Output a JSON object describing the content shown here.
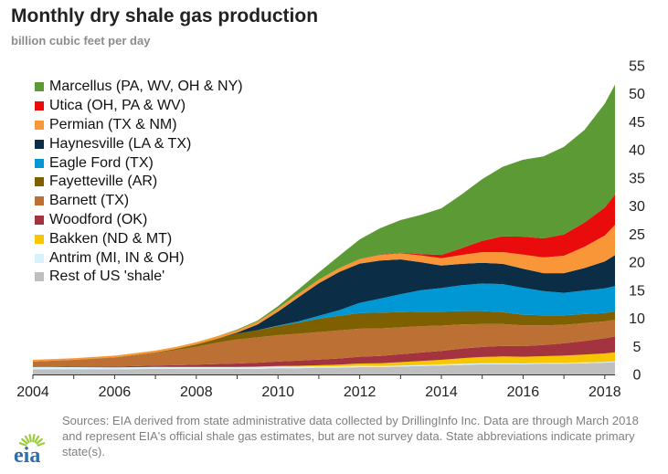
{
  "header": {
    "title": "Monthly dry shale gas production",
    "subtitle": "billion cubic feet per day"
  },
  "sources": {
    "text": "Sources: EIA derived from state administrative data collected by DrillingInfo Inc. Data are through March 2018 and represent EIA's official shale gas estimates, but are not survey data. State abbreviations indicate primary state(s)."
  },
  "logo": {
    "text": "eia",
    "color": "#2f6fae",
    "accent": "#9ccc3c"
  },
  "chart_data": {
    "type": "area",
    "stacked": true,
    "title": "Monthly dry shale gas production",
    "subtitle": "billion cubic feet per day",
    "xlabel": "",
    "ylabel": "",
    "xlim": [
      2004,
      2018.25
    ],
    "ylim": [
      0,
      55
    ],
    "x_ticks": [
      2004,
      2006,
      2008,
      2010,
      2012,
      2014,
      2016,
      2018
    ],
    "y_ticks": [
      0,
      5,
      10,
      15,
      20,
      25,
      30,
      35,
      40,
      45,
      50,
      55
    ],
    "y_axis_side": "right",
    "grid": false,
    "legend_position": "top-left",
    "x": [
      2004.0,
      2005.0,
      2006.0,
      2007.0,
      2007.5,
      2008.0,
      2008.5,
      2009.0,
      2009.5,
      2010.0,
      2010.5,
      2011.0,
      2011.5,
      2012.0,
      2012.5,
      2013.0,
      2013.5,
      2014.0,
      2014.5,
      2015.0,
      2015.5,
      2016.0,
      2016.5,
      2017.0,
      2017.5,
      2018.0,
      2018.25
    ],
    "series": [
      {
        "name": "Rest of US 'shale'",
        "color": "#bfbfbf",
        "values": [
          0.9,
          0.9,
          0.9,
          1.0,
          1.0,
          1.0,
          1.0,
          1.0,
          1.0,
          1.1,
          1.1,
          1.2,
          1.2,
          1.3,
          1.3,
          1.4,
          1.5,
          1.6,
          1.7,
          1.8,
          1.8,
          1.8,
          1.9,
          1.9,
          2.0,
          2.1,
          2.2
        ]
      },
      {
        "name": "Antrim (MI, IN & OH)",
        "color": "#d6f3fb",
        "values": [
          0.4,
          0.4,
          0.35,
          0.35,
          0.3,
          0.3,
          0.3,
          0.3,
          0.3,
          0.3,
          0.3,
          0.25,
          0.25,
          0.25,
          0.2,
          0.2,
          0.2,
          0.2,
          0.2,
          0.2,
          0.2,
          0.15,
          0.15,
          0.15,
          0.15,
          0.15,
          0.15
        ]
      },
      {
        "name": "Bakken (ND & MT)",
        "color": "#f7c600",
        "values": [
          0.0,
          0.0,
          0.0,
          0.0,
          0.05,
          0.05,
          0.05,
          0.05,
          0.1,
          0.1,
          0.15,
          0.2,
          0.3,
          0.4,
          0.5,
          0.6,
          0.7,
          0.8,
          1.0,
          1.1,
          1.2,
          1.2,
          1.2,
          1.3,
          1.4,
          1.5,
          1.6
        ]
      },
      {
        "name": "Woodford (OK)",
        "color": "#a3333f",
        "values": [
          0.0,
          0.1,
          0.15,
          0.25,
          0.3,
          0.4,
          0.5,
          0.6,
          0.7,
          0.8,
          0.9,
          1.0,
          1.1,
          1.2,
          1.3,
          1.4,
          1.5,
          1.6,
          1.7,
          1.8,
          1.9,
          1.9,
          2.0,
          2.2,
          2.4,
          2.7,
          2.8
        ]
      },
      {
        "name": "Barnett (TX)",
        "color": "#bd7033",
        "values": [
          1.0,
          1.2,
          1.6,
          2.2,
          2.7,
          3.2,
          3.8,
          4.3,
          4.5,
          4.7,
          4.8,
          4.9,
          5.0,
          5.0,
          4.9,
          4.8,
          4.7,
          4.5,
          4.3,
          4.1,
          3.9,
          3.7,
          3.5,
          3.3,
          3.2,
          3.0,
          3.0
        ]
      },
      {
        "name": "Fayetteville (AR)",
        "color": "#7f6000",
        "values": [
          0.0,
          0.0,
          0.05,
          0.1,
          0.2,
          0.4,
          0.7,
          1.0,
          1.3,
          1.6,
          2.0,
          2.4,
          2.6,
          2.8,
          2.8,
          2.7,
          2.6,
          2.5,
          2.4,
          2.3,
          2.1,
          1.9,
          1.8,
          1.7,
          1.6,
          1.5,
          1.5
        ]
      },
      {
        "name": "Eagle Ford (TX)",
        "color": "#0098d4",
        "values": [
          0.0,
          0.0,
          0.0,
          0.0,
          0.0,
          0.0,
          0.0,
          0.0,
          0.0,
          0.1,
          0.2,
          0.5,
          1.0,
          1.8,
          2.5,
          3.2,
          3.8,
          4.2,
          4.6,
          4.9,
          5.0,
          4.8,
          4.3,
          4.0,
          4.2,
          4.4,
          4.5
        ]
      },
      {
        "name": "Haynesville (LA & TX)",
        "color": "#0b2d46",
        "values": [
          0.0,
          0.0,
          0.0,
          0.0,
          0.0,
          0.0,
          0.0,
          0.2,
          1.0,
          2.5,
          4.3,
          5.8,
          6.8,
          7.0,
          6.8,
          6.2,
          5.0,
          4.0,
          3.8,
          3.7,
          3.6,
          3.4,
          3.2,
          3.5,
          4.0,
          4.8,
          5.5
        ]
      },
      {
        "name": "Permian (TX & NM)",
        "color": "#f89638",
        "values": [
          0.3,
          0.3,
          0.3,
          0.35,
          0.35,
          0.4,
          0.45,
          0.45,
          0.5,
          0.55,
          0.6,
          0.65,
          0.7,
          0.8,
          1.0,
          1.1,
          1.2,
          1.3,
          1.6,
          1.9,
          2.1,
          2.5,
          2.8,
          3.1,
          3.8,
          4.6,
          5.4
        ]
      },
      {
        "name": "Utica (OH, PA & WV)",
        "color": "#ea0c0c",
        "values": [
          0.0,
          0.0,
          0.0,
          0.0,
          0.0,
          0.0,
          0.0,
          0.0,
          0.0,
          0.0,
          0.0,
          0.0,
          0.0,
          0.02,
          0.05,
          0.1,
          0.25,
          0.6,
          1.2,
          2.0,
          2.8,
          3.2,
          3.4,
          3.8,
          4.3,
          5.0,
          5.4
        ]
      },
      {
        "name": "Marcellus (PA, WV, OH & NY)",
        "color": "#5b9a34",
        "values": [
          0.0,
          0.0,
          0.0,
          0.0,
          0.0,
          0.0,
          0.0,
          0.1,
          0.2,
          0.4,
          0.8,
          1.3,
          2.2,
          3.5,
          4.7,
          5.8,
          7.0,
          8.3,
          9.6,
          11.0,
          12.4,
          13.7,
          14.6,
          15.6,
          16.5,
          18.5,
          19.6
        ]
      }
    ]
  }
}
